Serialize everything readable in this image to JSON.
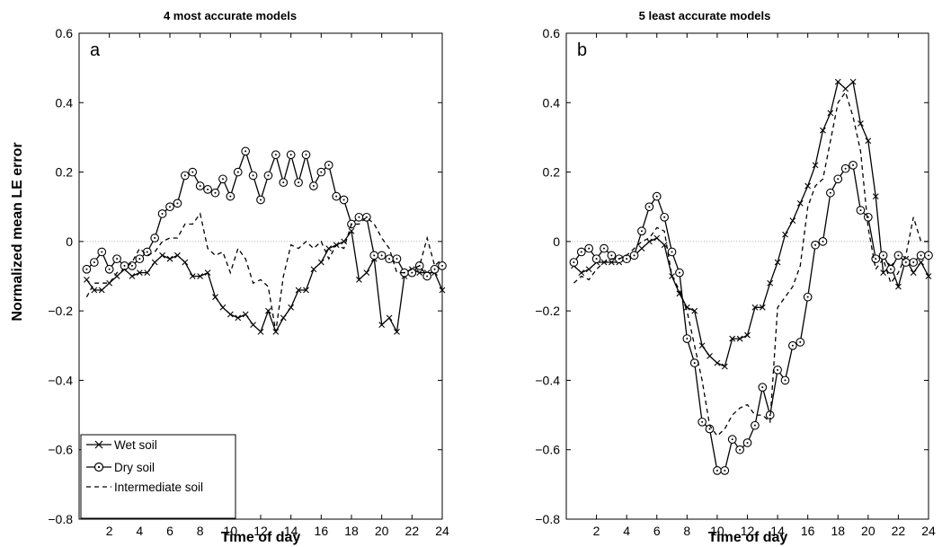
{
  "figure": {
    "ylabel": "Normalized mean LE error",
    "legend": {
      "placement": "bottom-left",
      "entries": [
        {
          "key": "wet",
          "label": "Wet soil"
        },
        {
          "key": "dry",
          "label": "Dry soil"
        },
        {
          "key": "intermediate",
          "label": "Intermediate soil"
        }
      ]
    }
  },
  "chart_data": [
    {
      "type": "line",
      "panel_label": "a",
      "title": "4 most accurate models",
      "xlabel": "Time of day",
      "ylabel": "Normalized mean LE error",
      "xlim": [
        0,
        24
      ],
      "ylim": [
        -0.8,
        0.6
      ],
      "xticks": [
        2,
        4,
        6,
        8,
        10,
        12,
        14,
        16,
        18,
        20,
        22,
        24
      ],
      "yticks": [
        -0.8,
        -0.6,
        -0.4,
        -0.2,
        0,
        0.2,
        0.4,
        0.6
      ],
      "ytick_labels": [
        "−0.8",
        "−0.6",
        "−0.4",
        "−0.2",
        "0",
        "0.2",
        "0.4",
        "0.6"
      ],
      "zero_line": true,
      "x": [
        0.5,
        1,
        1.5,
        2,
        2.5,
        3,
        3.5,
        4,
        4.5,
        5,
        5.5,
        6,
        6.5,
        7,
        7.5,
        8,
        8.5,
        9,
        9.5,
        10,
        10.5,
        11,
        11.5,
        12,
        12.5,
        13,
        13.5,
        14,
        14.5,
        15,
        15.5,
        16,
        16.5,
        17,
        17.5,
        18,
        18.5,
        19,
        19.5,
        20,
        20.5,
        21,
        21.5,
        22,
        22.5,
        23,
        23.5,
        24
      ],
      "series": [
        {
          "key": "wet",
          "name": "Wet soil",
          "marker": "x",
          "style": "solid",
          "values": [
            -0.11,
            -0.14,
            -0.14,
            -0.12,
            -0.1,
            -0.08,
            -0.1,
            -0.09,
            -0.09,
            -0.06,
            -0.04,
            -0.05,
            -0.04,
            -0.06,
            -0.1,
            -0.1,
            -0.09,
            -0.16,
            -0.19,
            -0.21,
            -0.22,
            -0.21,
            -0.24,
            -0.26,
            -0.2,
            -0.26,
            -0.22,
            -0.19,
            -0.14,
            -0.14,
            -0.08,
            -0.06,
            -0.02,
            -0.01,
            0.0,
            0.03,
            -0.11,
            -0.09,
            -0.05,
            -0.24,
            -0.22,
            -0.26,
            -0.1,
            -0.08,
            -0.09,
            -0.09,
            -0.09,
            -0.14
          ]
        },
        {
          "key": "dry",
          "name": "Dry soil",
          "marker": "o",
          "style": "solid",
          "values": [
            -0.08,
            -0.06,
            -0.03,
            -0.08,
            -0.05,
            -0.07,
            -0.07,
            -0.05,
            -0.03,
            0.01,
            0.08,
            0.1,
            0.11,
            0.19,
            0.2,
            0.16,
            0.15,
            0.14,
            0.18,
            0.13,
            0.2,
            0.26,
            0.19,
            0.12,
            0.19,
            0.25,
            0.17,
            0.25,
            0.17,
            0.25,
            0.16,
            0.2,
            0.22,
            0.13,
            0.12,
            0.05,
            0.07,
            0.07,
            -0.04,
            -0.04,
            -0.05,
            -0.05,
            -0.09,
            -0.09,
            -0.07,
            -0.1,
            -0.08,
            -0.07
          ]
        },
        {
          "key": "intermediate",
          "name": "Intermediate soil",
          "marker": "none",
          "style": "dashed",
          "values": [
            -0.16,
            -0.12,
            -0.12,
            -0.12,
            -0.09,
            -0.08,
            -0.06,
            -0.02,
            -0.04,
            -0.03,
            0.0,
            0.01,
            0.01,
            0.05,
            0.05,
            0.08,
            -0.02,
            -0.04,
            -0.03,
            -0.09,
            -0.02,
            -0.05,
            -0.12,
            -0.11,
            -0.13,
            -0.26,
            -0.1,
            -0.01,
            -0.02,
            0.0,
            -0.02,
            0.0,
            -0.05,
            -0.01,
            -0.02,
            0.05,
            0.05,
            0.07,
            0.05,
            0.01,
            -0.02,
            -0.09,
            -0.09,
            -0.08,
            -0.07,
            0.01,
            -0.07,
            -0.05
          ]
        }
      ]
    },
    {
      "type": "line",
      "panel_label": "b",
      "title": "5 least accurate models",
      "xlabel": "Time of day",
      "ylabel": "",
      "xlim": [
        0,
        24
      ],
      "ylim": [
        -0.8,
        0.6
      ],
      "xticks": [
        2,
        4,
        6,
        8,
        10,
        12,
        14,
        16,
        18,
        20,
        22,
        24
      ],
      "yticks": [
        -0.8,
        -0.6,
        -0.4,
        -0.2,
        0,
        0.2,
        0.4,
        0.6
      ],
      "ytick_labels": [
        "−0.8",
        "−0.6",
        "−0.4",
        "−0.2",
        "0",
        "0.2",
        "0.4",
        "0.6"
      ],
      "zero_line": true,
      "x": [
        0.5,
        1,
        1.5,
        2,
        2.5,
        3,
        3.5,
        4,
        4.5,
        5,
        5.5,
        6,
        6.5,
        7,
        7.5,
        8,
        8.5,
        9,
        9.5,
        10,
        10.5,
        11,
        11.5,
        12,
        12.5,
        13,
        13.5,
        14,
        14.5,
        15,
        15.5,
        16,
        16.5,
        17,
        17.5,
        18,
        18.5,
        19,
        19.5,
        20,
        20.5,
        21,
        21.5,
        22,
        22.5,
        23,
        23.5,
        24
      ],
      "series": [
        {
          "key": "wet",
          "name": "Wet soil",
          "marker": "x",
          "style": "solid",
          "values": [
            -0.07,
            -0.09,
            -0.08,
            -0.06,
            -0.06,
            -0.06,
            -0.06,
            -0.05,
            -0.04,
            -0.02,
            0.0,
            0.01,
            -0.01,
            -0.1,
            -0.15,
            -0.19,
            -0.2,
            -0.3,
            -0.33,
            -0.35,
            -0.36,
            -0.28,
            -0.28,
            -0.27,
            -0.19,
            -0.19,
            -0.12,
            -0.06,
            0.02,
            0.06,
            0.11,
            0.16,
            0.22,
            0.32,
            0.37,
            0.46,
            0.44,
            0.46,
            0.34,
            0.29,
            0.13,
            -0.09,
            -0.07,
            -0.13,
            -0.05,
            -0.09,
            -0.06,
            -0.1
          ]
        },
        {
          "key": "dry",
          "name": "Dry soil",
          "marker": "o",
          "style": "solid",
          "values": [
            -0.06,
            -0.03,
            -0.02,
            -0.05,
            -0.02,
            -0.04,
            -0.05,
            -0.05,
            -0.04,
            0.03,
            0.1,
            0.13,
            0.07,
            -0.03,
            -0.09,
            -0.28,
            -0.35,
            -0.52,
            -0.54,
            -0.66,
            -0.66,
            -0.57,
            -0.6,
            -0.58,
            -0.53,
            -0.42,
            -0.5,
            -0.37,
            -0.4,
            -0.3,
            -0.29,
            -0.16,
            -0.01,
            0.0,
            0.14,
            0.18,
            0.21,
            0.22,
            0.09,
            0.07,
            -0.05,
            -0.04,
            -0.08,
            -0.04,
            -0.06,
            -0.06,
            -0.04,
            -0.04
          ]
        },
        {
          "key": "intermediate",
          "name": "Intermediate soil",
          "marker": "none",
          "style": "dashed",
          "values": [
            -0.12,
            -0.1,
            -0.11,
            -0.08,
            -0.06,
            -0.05,
            -0.05,
            -0.04,
            -0.02,
            0.0,
            0.01,
            0.04,
            0.03,
            -0.1,
            -0.14,
            -0.2,
            -0.3,
            -0.4,
            -0.53,
            -0.56,
            -0.54,
            -0.5,
            -0.48,
            -0.47,
            -0.5,
            -0.5,
            -0.52,
            -0.19,
            -0.16,
            -0.13,
            -0.07,
            0.1,
            0.16,
            0.18,
            0.29,
            0.4,
            0.43,
            0.36,
            0.26,
            0.04,
            -0.08,
            -0.05,
            -0.12,
            -0.09,
            -0.04,
            0.07,
            0.0,
            0.0
          ]
        }
      ]
    }
  ]
}
